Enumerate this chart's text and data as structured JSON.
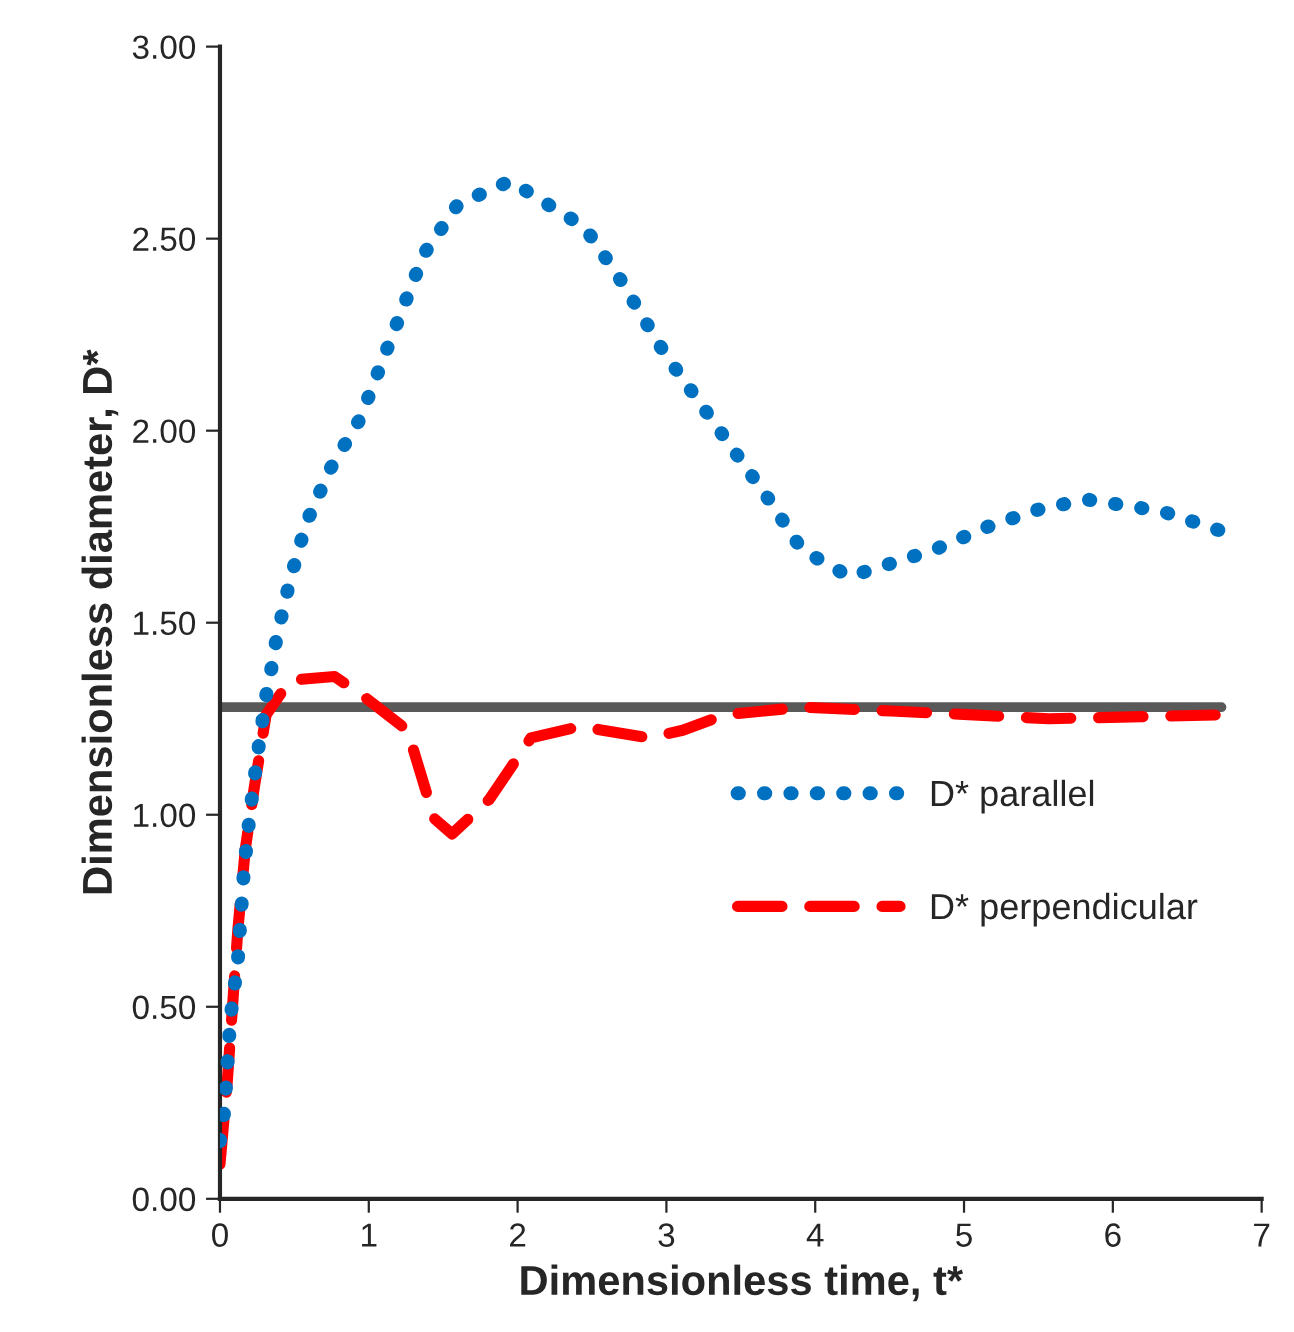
{
  "chart_data": {
    "type": "line",
    "xlabel": "Dimensionless time, t*",
    "ylabel": "Dimensionless diameter, D*",
    "xlim": [
      0,
      7
    ],
    "xticks": [
      0,
      1,
      2,
      3,
      4,
      5,
      6,
      7
    ],
    "ylim": [
      0,
      3
    ],
    "yticks": [
      {
        "value": 0,
        "label": "0.00"
      },
      {
        "value": 0.5,
        "label": "0.50"
      },
      {
        "value": 1,
        "label": "1.00"
      },
      {
        "value": 1.5,
        "label": "1.50"
      },
      {
        "value": 2,
        "label": "2.00"
      },
      {
        "value": 2.5,
        "label": "2.50"
      },
      {
        "value": 3,
        "label": "3.00"
      }
    ],
    "grid": false,
    "legend": "right",
    "series": [
      {
        "name": "D* parallel",
        "color": "#0070c0",
        "line_style": "dotted",
        "x": [
          0,
          0.03,
          0.07,
          0.12,
          0.16,
          0.2,
          0.25,
          0.28,
          0.31,
          0.35,
          0.38,
          0.47,
          0.58,
          0.74,
          0.94,
          1.16,
          1.37,
          1.6,
          1.95,
          2.45,
          2.68,
          2.99,
          3.34,
          3.69,
          3.91,
          4.23,
          4.8,
          5.16,
          5.54,
          5.84,
          6.33,
          6.72
        ],
        "values": [
          0.15,
          0.23,
          0.47,
          0.62,
          0.85,
          1.0,
          1.15,
          1.23,
          1.31,
          1.39,
          1.46,
          1.61,
          1.76,
          1.9,
          2.03,
          2.25,
          2.46,
          2.59,
          2.65,
          2.53,
          2.4,
          2.2,
          2.01,
          1.82,
          1.69,
          1.62,
          1.69,
          1.75,
          1.8,
          1.82,
          1.79,
          1.74
        ]
      },
      {
        "name": "D* perpendicular",
        "color": "#ff0000",
        "line_style": "dashed",
        "x": [
          0,
          0.05,
          0.12,
          0.17,
          0.23,
          0.31,
          0.47,
          0.77,
          0.96,
          1.26,
          1.44,
          1.56,
          1.81,
          2.09,
          2.42,
          2.88,
          3.11,
          3.39,
          3.91,
          4.51,
          5.06,
          5.57,
          6.73
        ],
        "values": [
          0.09,
          0.31,
          0.7,
          0.91,
          1.07,
          1.26,
          1.35,
          1.36,
          1.31,
          1.22,
          0.99,
          0.95,
          1.04,
          1.2,
          1.23,
          1.2,
          1.22,
          1.26,
          1.28,
          1.27,
          1.26,
          1.25,
          1.26
        ]
      },
      {
        "color": "#595959",
        "line_style": "solid",
        "x": [
          0,
          6.73
        ],
        "values": [
          1.28,
          1.28
        ]
      }
    ]
  }
}
